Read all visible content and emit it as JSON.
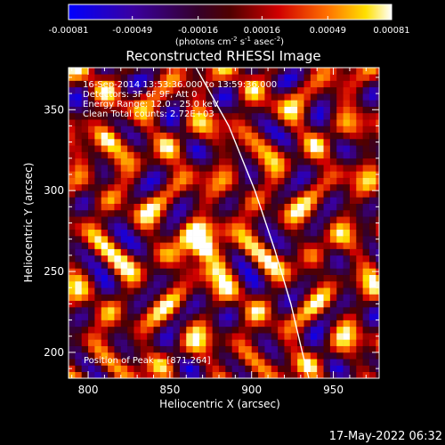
{
  "chart_data": {
    "type": "heatmap",
    "title": "Reconstructed RHESSI Image",
    "xlabel": "Heliocentric X (arcsec)",
    "ylabel": "Heliocentric Y (arcsec)",
    "xlim": [
      788,
      978
    ],
    "ylim": [
      184,
      376
    ],
    "x_ticks": [
      800,
      850,
      900,
      950
    ],
    "y_ticks": [
      200,
      250,
      300,
      350
    ],
    "colorbar": {
      "ticks": [
        "-0.00081",
        "-0.00049",
        "-0.00016",
        "0.00016",
        "0.00049",
        "0.00081"
      ],
      "range": [
        -0.00081,
        0.00081
      ],
      "units_label": "(photons cm",
      "units_exp1": "-2",
      "units_mid": " s",
      "units_exp2": "-1",
      "units_end": " asec",
      "units_exp3": "-2",
      "units_close": ")"
    },
    "annotations": {
      "time": "16-Sep-2014 13:53:36.000 to 13:59:36.000",
      "detectors": "Detectors: 3F 6F 9F, Att 0",
      "energy": "Energy Range: 12.0 - 25.0 keV",
      "clean": "Clean     Total counts: 2.72E+03",
      "peak": "Position of Peak = [871,264]"
    },
    "peak": [
      871,
      264
    ],
    "secondary_peak": [
      812,
      332
    ],
    "limb_curve": [
      [
        866,
        376
      ],
      [
        886,
        340
      ],
      [
        902,
        300
      ],
      [
        914,
        264
      ],
      [
        924,
        230
      ],
      [
        931,
        200
      ],
      [
        935,
        184
      ]
    ],
    "pixel_size_arcsec": 4
  },
  "timestamp": "17-May-2022 06:32",
  "colors": {
    "background": "#000000",
    "text": "#ffffff"
  }
}
